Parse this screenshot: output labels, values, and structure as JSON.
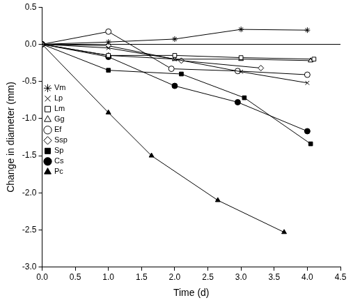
{
  "chart_data": {
    "type": "line",
    "x_label": "Time (d)",
    "y_label": "Change in diameter (mm)",
    "xlim": [
      0,
      4.5
    ],
    "xticks": [
      {
        "value": 0,
        "label": "0.0"
      },
      {
        "value": 0.5,
        "label": "0.5"
      },
      {
        "value": 1,
        "label": "1.0"
      },
      {
        "value": 1.5,
        "label": "1.5"
      },
      {
        "value": 2,
        "label": "2.0"
      },
      {
        "value": 2.5,
        "label": "2.5"
      },
      {
        "value": 3,
        "label": "3.0"
      },
      {
        "value": 3.5,
        "label": "3.5"
      },
      {
        "value": 4,
        "label": "4.0"
      },
      {
        "value": 4.5,
        "label": "4.5"
      }
    ],
    "ylim": [
      -3,
      0.5
    ],
    "yticks": [
      {
        "value": -3,
        "label": "-3.0"
      },
      {
        "value": -2.5,
        "label": "-2.5"
      },
      {
        "value": -2,
        "label": "-2.0"
      },
      {
        "value": -1.5,
        "label": "-1.5"
      },
      {
        "value": -1,
        "label": "-1.0"
      },
      {
        "value": -0.5,
        "label": "-0.5"
      },
      {
        "value": 0,
        "label": "0.0"
      },
      {
        "value": 0.5,
        "label": "0.5"
      }
    ],
    "grid": false,
    "legend": "left",
    "series": [
      {
        "name": "Vm",
        "color": "#000000",
        "marker": "star",
        "line_style": "solid",
        "x": [
          0,
          1,
          2,
          3,
          4
        ],
        "values": [
          0,
          0.03,
          0.07,
          0.2,
          0.19
        ]
      },
      {
        "name": "Lp",
        "color": "#000000",
        "marker": "x",
        "line_style": "solid",
        "x": [
          0,
          1,
          2,
          3,
          4
        ],
        "values": [
          0,
          -0.05,
          -0.2,
          -0.37,
          -0.52
        ]
      },
      {
        "name": "Lm",
        "color": "#000000",
        "marker": "square_open",
        "line_style": "solid",
        "x": [
          0,
          1,
          2,
          3,
          4.1
        ],
        "values": [
          0,
          -0.15,
          -0.15,
          -0.18,
          -0.2
        ]
      },
      {
        "name": "Gg",
        "color": "#000000",
        "marker": "triangle_open",
        "line_style": "solid",
        "x": [
          0,
          1,
          2,
          3,
          4.05
        ],
        "values": [
          0,
          -0.15,
          -0.2,
          -0.2,
          -0.22
        ]
      },
      {
        "name": "Ef",
        "color": "#000000",
        "marker": "circle_open",
        "line_style": "solid",
        "x": [
          0,
          1,
          1.95,
          2.95,
          4
        ],
        "values": [
          0,
          0.17,
          -0.33,
          -0.36,
          -0.41
        ]
      },
      {
        "name": "Ssp",
        "color": "#000000",
        "marker": "diamond_open",
        "line_style": "solid",
        "x": [
          0,
          1,
          2.1,
          3.3
        ],
        "values": [
          0,
          -0.02,
          -0.22,
          -0.32
        ]
      },
      {
        "name": "Sp",
        "color": "#000000",
        "marker": "square",
        "line_style": "solid",
        "x": [
          0,
          1,
          2.1,
          3.05,
          4.05
        ],
        "values": [
          0,
          -0.35,
          -0.4,
          -0.72,
          -1.34
        ]
      },
      {
        "name": "Cs",
        "color": "#000000",
        "marker": "circle",
        "line_style": "solid",
        "x": [
          0,
          1,
          2,
          2.95,
          4
        ],
        "values": [
          0,
          -0.17,
          -0.56,
          -0.78,
          -1.17
        ]
      },
      {
        "name": "Pc",
        "color": "#000000",
        "marker": "triangle",
        "line_style": "solid",
        "x": [
          0,
          1,
          1.65,
          2.65,
          3.65
        ],
        "values": [
          0,
          -0.92,
          -1.5,
          -2.1,
          -2.53
        ]
      }
    ]
  }
}
